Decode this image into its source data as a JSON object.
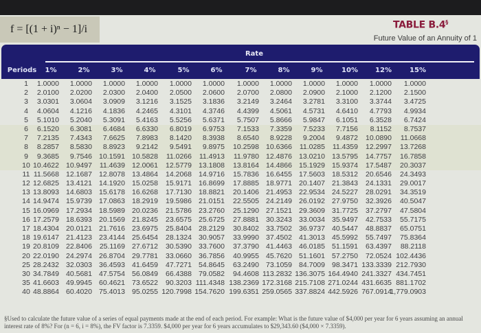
{
  "formula": "f = [(1 + i)ⁿ − 1]/i",
  "table_title": "TABLE B.4",
  "table_title_marker": "§",
  "table_subtitle": "Future Value of an Annuity of 1",
  "rate_label": "Rate",
  "periods_label": "Periods",
  "rates": [
    "1%",
    "2%",
    "3%",
    "4%",
    "5%",
    "6%",
    "7%",
    "8%",
    "9%",
    "10%",
    "12%",
    "15%"
  ],
  "rows": [
    {
      "period": "1",
      "values": [
        "1.0000",
        "1.0000",
        "1.0000",
        "1.0000",
        "1.0000",
        "1.0000",
        "1.0000",
        "1.0000",
        "1.0000",
        "1.0000",
        "1.0000",
        "1.0000"
      ]
    },
    {
      "period": "2",
      "values": [
        "2.0100",
        "2.0200",
        "2.0300",
        "2.0400",
        "2.0500",
        "2.0600",
        "2.0700",
        "2.0800",
        "2.0900",
        "2.1000",
        "2.1200",
        "2.1500"
      ]
    },
    {
      "period": "3",
      "values": [
        "3.0301",
        "3.0604",
        "3.0909",
        "3.1216",
        "3.1525",
        "3.1836",
        "3.2149",
        "3.2464",
        "3.2781",
        "3.3100",
        "3.3744",
        "3.4725"
      ]
    },
    {
      "period": "4",
      "values": [
        "4.0604",
        "4.1216",
        "4.1836",
        "4.2465",
        "4.3101",
        "4.3746",
        "4.4399",
        "4.5061",
        "4.5731",
        "4.6410",
        "4.7793",
        "4.9934"
      ]
    },
    {
      "period": "5",
      "values": [
        "5.1010",
        "5.2040",
        "5.3091",
        "5.4163",
        "5.5256",
        "5.6371",
        "5.7507",
        "5.8666",
        "5.9847",
        "6.1051",
        "6.3528",
        "6.7424"
      ]
    },
    {
      "period": "6",
      "values": [
        "6.1520",
        "6.3081",
        "6.4684",
        "6.6330",
        "6.8019",
        "6.9753",
        "7.1533",
        "7.3359",
        "7.5233",
        "7.7156",
        "8.1152",
        "8.7537"
      ]
    },
    {
      "period": "7",
      "values": [
        "7.2135",
        "7.4343",
        "7.6625",
        "7.8983",
        "8.1420",
        "8.3938",
        "8.6540",
        "8.9228",
        "9.2004",
        "9.4872",
        "10.0890",
        "11.0668"
      ]
    },
    {
      "period": "8",
      "values": [
        "8.2857",
        "8.5830",
        "8.8923",
        "9.2142",
        "9.5491",
        "9.8975",
        "10.2598",
        "10.6366",
        "11.0285",
        "11.4359",
        "12.2997",
        "13.7268"
      ]
    },
    {
      "period": "9",
      "values": [
        "9.3685",
        "9.7546",
        "10.1591",
        "10.5828",
        "11.0266",
        "11.4913",
        "11.9780",
        "12.4876",
        "13.0210",
        "13.5795",
        "14.7757",
        "16.7858"
      ]
    },
    {
      "period": "10",
      "values": [
        "10.4622",
        "10.9497",
        "11.4639",
        "12.0061",
        "12.5779",
        "13.1808",
        "13.8164",
        "14.4866",
        "15.1929",
        "15.9374",
        "17.5487",
        "20.3037"
      ]
    },
    {
      "period": "11",
      "values": [
        "11.5668",
        "12.1687",
        "12.8078",
        "13.4864",
        "14.2068",
        "14.9716",
        "15.7836",
        "16.6455",
        "17.5603",
        "18.5312",
        "20.6546",
        "24.3493"
      ]
    },
    {
      "period": "12",
      "values": [
        "12.6825",
        "13.4121",
        "14.1920",
        "15.0258",
        "15.9171",
        "16.8699",
        "17.8885",
        "18.9771",
        "20.1407",
        "21.3843",
        "24.1331",
        "29.0017"
      ]
    },
    {
      "period": "13",
      "values": [
        "13.8093",
        "14.6803",
        "15.6178",
        "16.6268",
        "17.7130",
        "18.8821",
        "20.1406",
        "21.4953",
        "22.9534",
        "24.5227",
        "28.0291",
        "34.3519"
      ]
    },
    {
      "period": "14",
      "values": [
        "14.9474",
        "15.9739",
        "17.0863",
        "18.2919",
        "19.5986",
        "21.0151",
        "22.5505",
        "24.2149",
        "26.0192",
        "27.9750",
        "32.3926",
        "40.5047"
      ]
    },
    {
      "period": "15",
      "values": [
        "16.0969",
        "17.2934",
        "18.5989",
        "20.0236",
        "21.5786",
        "23.2760",
        "25.1290",
        "27.1521",
        "29.3609",
        "31.7725",
        "37.2797",
        "47.5804"
      ]
    },
    {
      "period": "16",
      "values": [
        "17.2579",
        "18.6393",
        "20.1569",
        "21.8245",
        "23.6575",
        "25.6725",
        "27.8881",
        "30.3243",
        "33.0034",
        "35.9497",
        "42.7533",
        "55.7175"
      ]
    },
    {
      "period": "17",
      "values": [
        "18.4304",
        "20.0121",
        "21.7616",
        "23.6975",
        "25.8404",
        "28.2129",
        "30.8402",
        "33.7502",
        "36.9737",
        "40.5447",
        "48.8837",
        "65.0751"
      ]
    },
    {
      "period": "18",
      "values": [
        "19.6147",
        "21.4123",
        "23.4144",
        "25.6454",
        "28.1324",
        "30.9057",
        "33.9990",
        "37.4502",
        "41.3013",
        "45.5992",
        "55.7497",
        "75.8364"
      ]
    },
    {
      "period": "19",
      "values": [
        "20.8109",
        "22.8406",
        "25.1169",
        "27.6712",
        "30.5390",
        "33.7600",
        "37.3790",
        "41.4463",
        "46.0185",
        "51.1591",
        "63.4397",
        "88.2118"
      ]
    },
    {
      "period": "20",
      "values": [
        "22.0190",
        "24.2974",
        "26.8704",
        "29.7781",
        "33.0660",
        "36.7856",
        "40.9955",
        "45.7620",
        "51.1601",
        "57.2750",
        "72.0524",
        "102.4436"
      ]
    },
    {
      "period": "25",
      "values": [
        "28.2432",
        "32.0303",
        "36.4593",
        "41.6459",
        "47.7271",
        "54.8645",
        "63.2490",
        "73.1059",
        "84.7009",
        "98.3471",
        "133.3339",
        "212.7930"
      ]
    },
    {
      "period": "30",
      "values": [
        "34.7849",
        "40.5681",
        "47.5754",
        "56.0849",
        "66.4388",
        "79.0582",
        "94.4608",
        "113.2832",
        "136.3075",
        "164.4940",
        "241.3327",
        "434.7451"
      ]
    },
    {
      "period": "35",
      "values": [
        "41.6603",
        "49.9945",
        "60.4621",
        "73.6522",
        "90.3203",
        "111.4348",
        "138.2369",
        "172.3168",
        "215.7108",
        "271.0244",
        "431.6635",
        "881.1702"
      ]
    },
    {
      "period": "40",
      "values": [
        "48.8864",
        "60.4020",
        "75.4013",
        "95.0255",
        "120.7998",
        "154.7620",
        "199.6351",
        "259.0565",
        "337.8824",
        "442.5926",
        "767.0914",
        "1,779.0903"
      ]
    }
  ],
  "footnote": "§Used to calculate the future value of a series of equal payments made at the end of each period. For example: What is the future value of $4,000 per year for 6 years assuming an annual interest rate of 8%? For (n = 6, i = 8%), the FV factor is 7.3359. $4,000 per year for 6 years accumulates to $29,343.60 ($4,000 × 7.3359).",
  "colors": {
    "header_band": "#1e1c6e",
    "title": "#8a1c3c",
    "formula_box": "#c9c8b8",
    "page": "#e4e6e0"
  }
}
